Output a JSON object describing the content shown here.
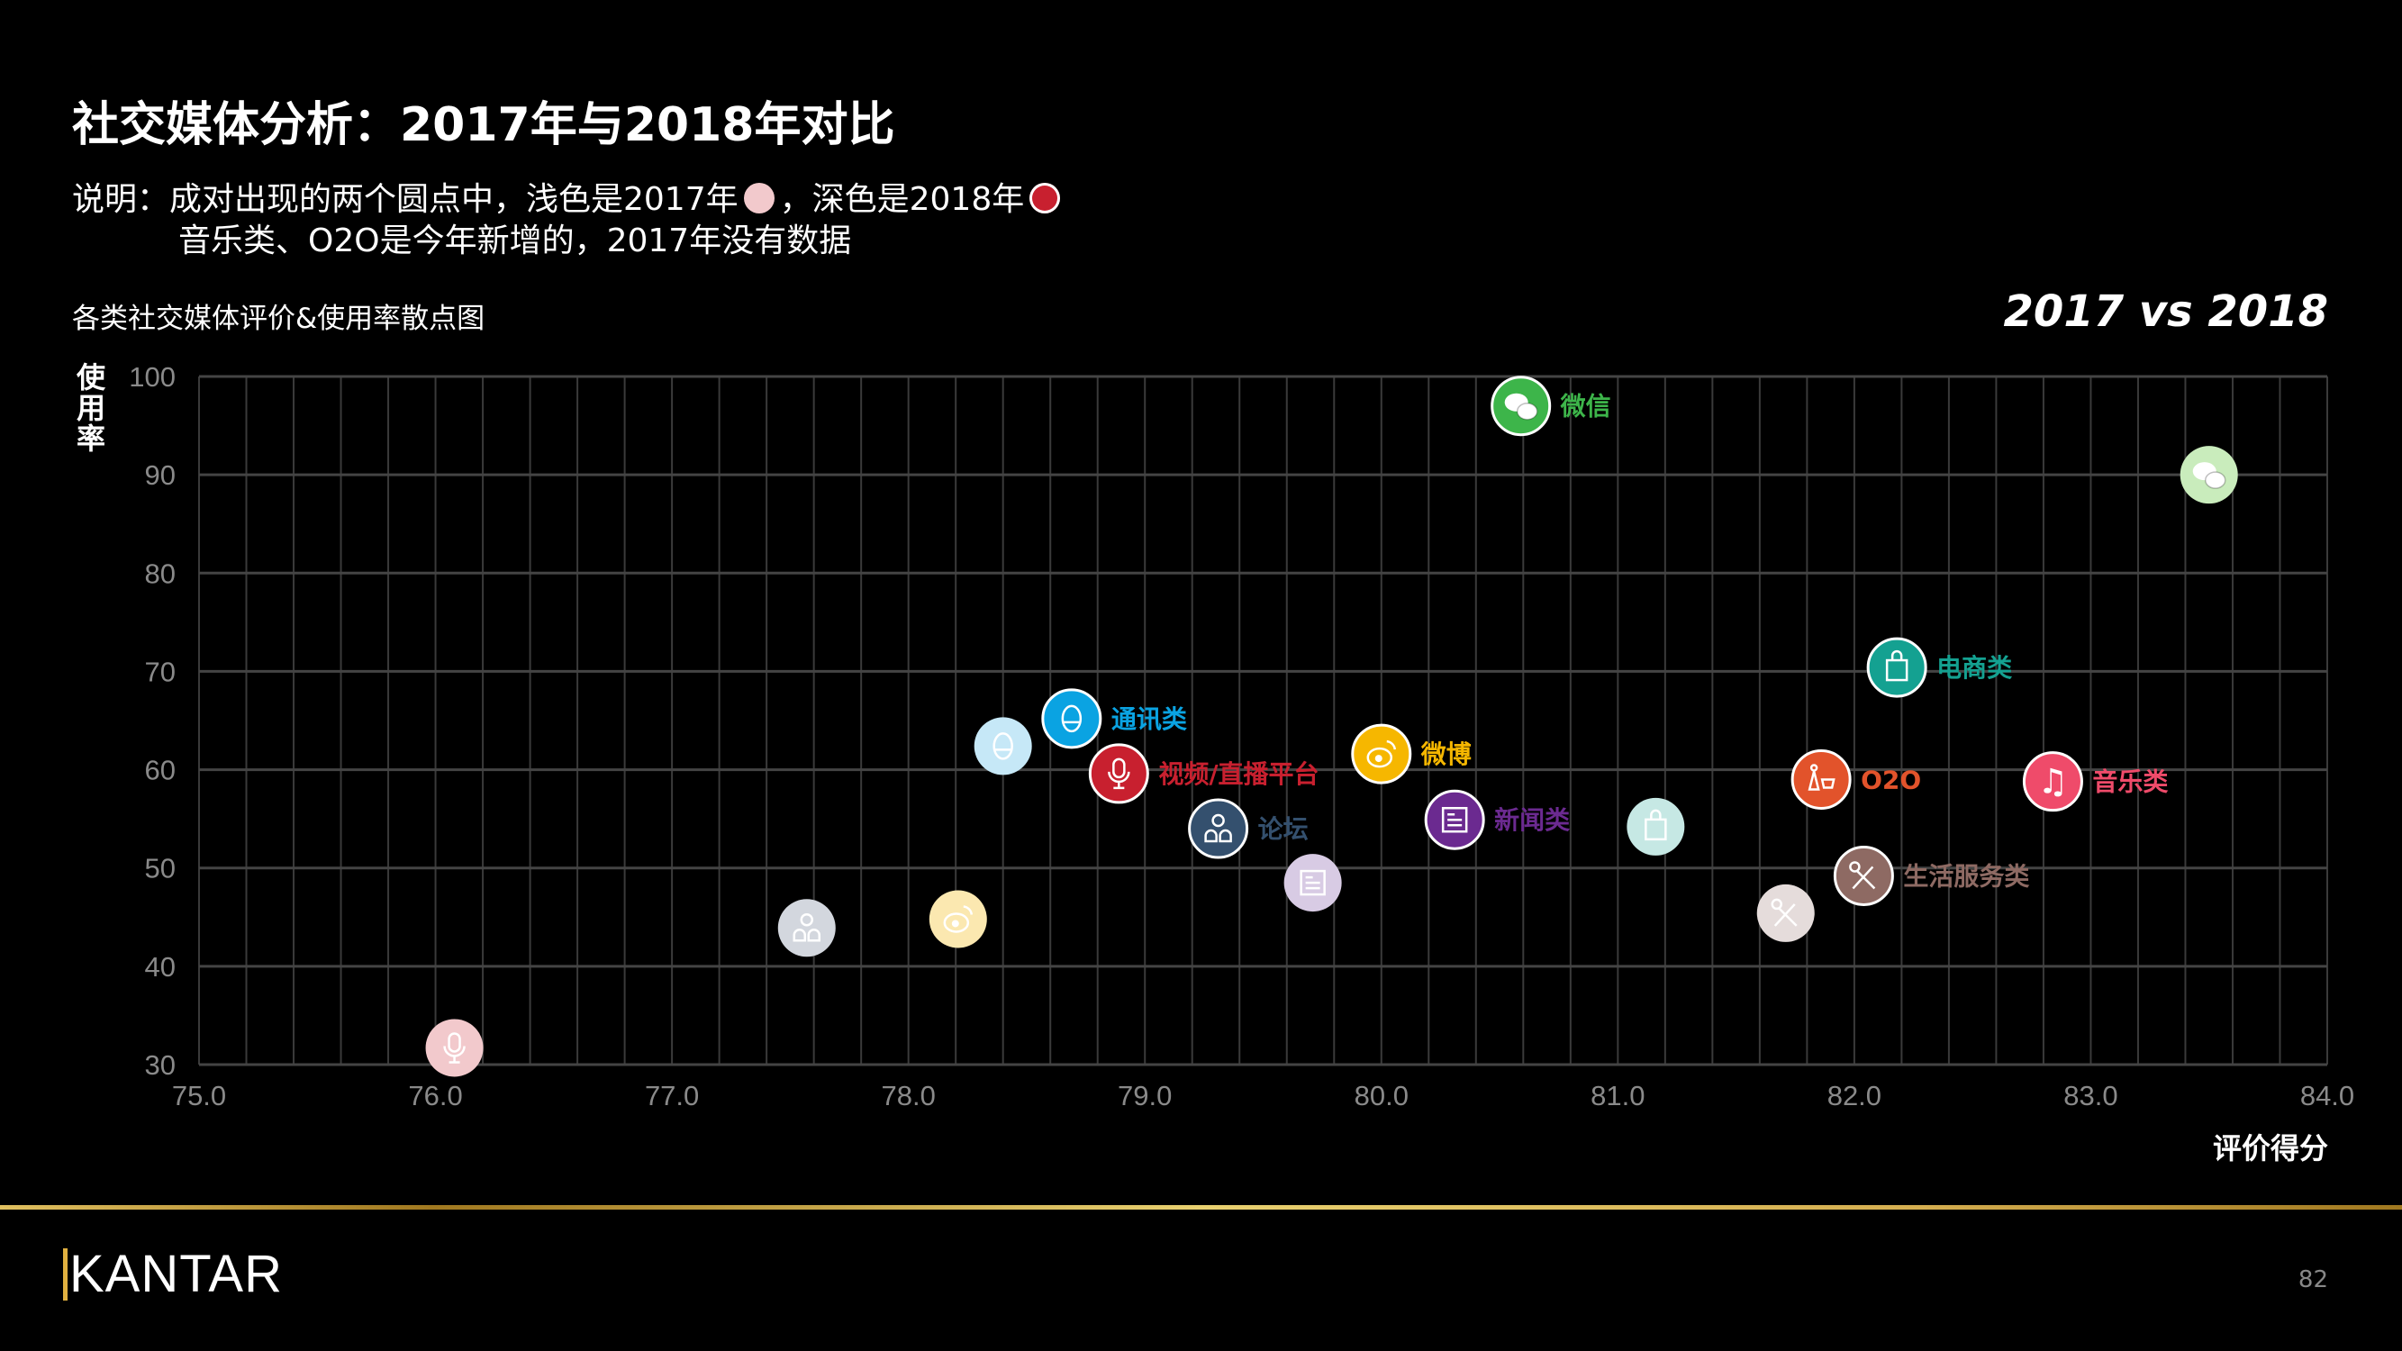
{
  "header": {
    "title": "社交媒体分析：2017年与2018年对比",
    "note_line1_a": "说明：成对出现的两个圆点中，浅色是2017年",
    "note_line1_b": "，深色是2018年",
    "note_line2": "音乐类、O2O是今年新增的，2017年没有数据",
    "legend_colors": {
      "light_2017": "#f2c9cc",
      "dark_2018": "#c8202f"
    }
  },
  "chart_data": {
    "type": "scatter",
    "title": "各类社交媒体评价&使用率散点图",
    "corner_label": "2017 vs 2018",
    "xlabel": "评价得分",
    "ylabel": "使用率",
    "xlim": [
      75.0,
      84.0
    ],
    "ylim": [
      30,
      100
    ],
    "xticks": [
      "75.0",
      "76.0",
      "77.0",
      "78.0",
      "79.0",
      "80.0",
      "81.0",
      "82.0",
      "83.0",
      "84.0"
    ],
    "yticks": [
      "30",
      "40",
      "50",
      "60",
      "70",
      "80",
      "90",
      "100"
    ],
    "grid": true,
    "series": [
      {
        "name": "微信",
        "icon": "wechat-icon",
        "color": "#3db54a",
        "light": "#c9ecbc",
        "y2018": [
          80.59,
          97.0
        ],
        "y2017": [
          83.5,
          90.0
        ]
      },
      {
        "name": "通讯类",
        "icon": "qq-penguin-icon",
        "color": "#0aa3e2",
        "light": "#c6e8f7",
        "y2018": [
          78.69,
          65.2
        ],
        "y2017": [
          78.4,
          62.4
        ]
      },
      {
        "name": "视频/直播平台",
        "icon": "microphone-icon",
        "color": "#c8202f",
        "light": "#f2c9cc",
        "y2018": [
          78.89,
          59.6
        ],
        "y2017": [
          76.08,
          31.7
        ]
      },
      {
        "name": "微博",
        "icon": "weibo-icon",
        "color": "#f6b700",
        "light": "#fbe8b0",
        "y2018": [
          80.0,
          61.6
        ],
        "y2017": [
          78.21,
          44.8
        ]
      },
      {
        "name": "论坛",
        "icon": "people-icon",
        "color": "#34506e",
        "light": "#d3d7de",
        "y2018": [
          79.31,
          54.0
        ],
        "y2017": [
          77.57,
          43.9
        ]
      },
      {
        "name": "新闻类",
        "icon": "newspaper-icon",
        "color": "#6b2a90",
        "light": "#d8cbe4",
        "y2018": [
          80.31,
          54.9
        ],
        "y2017": [
          79.71,
          48.5
        ]
      },
      {
        "name": "电商类",
        "icon": "shopping-bag-icon",
        "color": "#14a191",
        "light": "#c6e8e4",
        "y2018": [
          82.18,
          70.4
        ],
        "y2017": [
          81.16,
          54.2
        ]
      },
      {
        "name": "O2O",
        "icon": "shopping-cart-icon",
        "color": "#e2532b",
        "light": null,
        "y2018": [
          81.86,
          59.0
        ],
        "y2017": null
      },
      {
        "name": "音乐类",
        "icon": "music-note-icon",
        "color": "#ef4b6a",
        "light": null,
        "y2018": [
          82.84,
          58.8
        ],
        "y2017": null
      },
      {
        "name": "生活服务类",
        "icon": "fork-spoon-icon",
        "color": "#8e6a63",
        "light": "#e5dcdb",
        "y2018": [
          82.04,
          49.2
        ],
        "y2017": [
          81.71,
          45.4
        ]
      }
    ]
  },
  "footer": {
    "logo": "KANTAR",
    "page_number": "82",
    "accent": "#d4ae50"
  }
}
